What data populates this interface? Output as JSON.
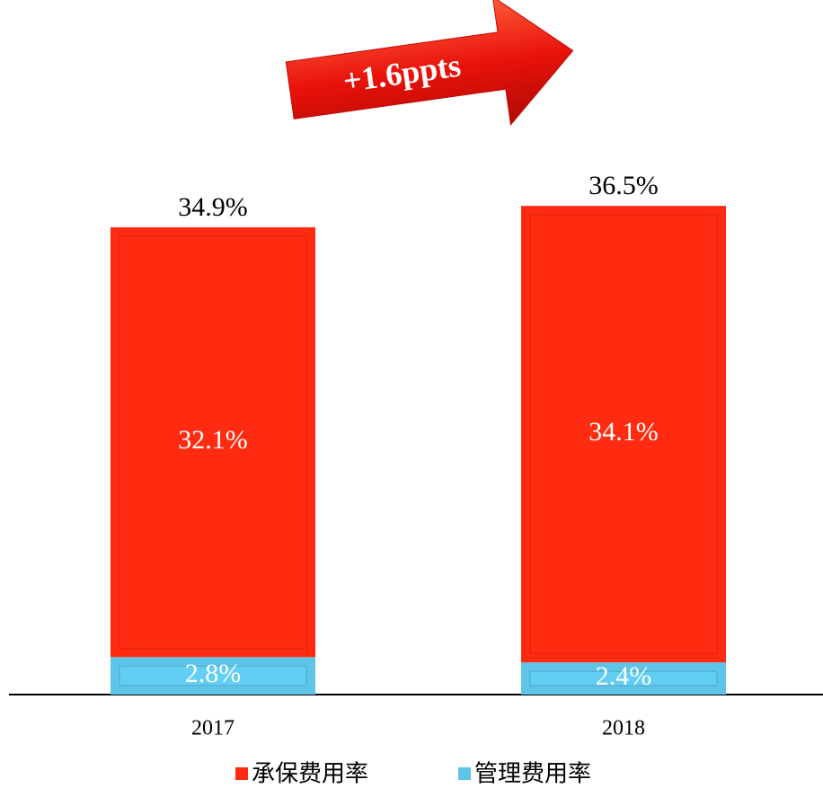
{
  "chart_data": {
    "type": "bar",
    "stacked": true,
    "categories": [
      "2017",
      "2018"
    ],
    "series": [
      {
        "name": "承保费用率",
        "color": "#ff2a10",
        "values": [
          32.1,
          34.1
        ],
        "value_labels": [
          "32.1%",
          "34.1%"
        ]
      },
      {
        "name": "管理费用率",
        "color": "#5ec4e8",
        "values": [
          2.8,
          2.4
        ],
        "value_labels": [
          "2.8%",
          "2.4%"
        ]
      }
    ],
    "totals": [
      34.9,
      36.5
    ],
    "total_labels": [
      "34.9%",
      "36.5%"
    ],
    "annotation": "+1.6ppts",
    "ylim": [
      0,
      40
    ],
    "legend": "bottom"
  }
}
